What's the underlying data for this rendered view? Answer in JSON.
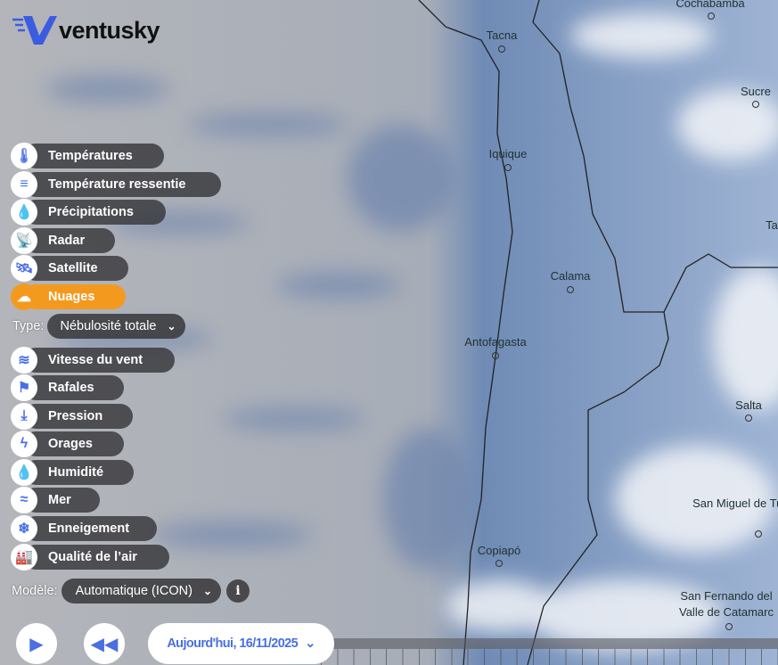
{
  "brand": {
    "name": "ventusky",
    "accent": "#4a6fe3",
    "active": "#f39a1e"
  },
  "layers": [
    {
      "label": "Températures",
      "icon": "thermometer-icon",
      "glyph": "🌡"
    },
    {
      "label": "Température ressentie",
      "icon": "feels-like-thermometer-icon",
      "glyph": "≡"
    },
    {
      "label": "Précipitations",
      "icon": "drop-icon",
      "glyph": "💧"
    },
    {
      "label": "Radar",
      "icon": "radar-dish-icon",
      "glyph": "📡"
    },
    {
      "label": "Satellite",
      "icon": "satellite-icon",
      "glyph": "🛰"
    },
    {
      "label": "Nuages",
      "icon": "cloud-icon",
      "glyph": "☁",
      "active": true
    },
    {
      "label": "Vitesse du vent",
      "icon": "wind-icon",
      "glyph": "≋"
    },
    {
      "label": "Rafales",
      "icon": "gust-flag-icon",
      "glyph": "⚑"
    },
    {
      "label": "Pression",
      "icon": "pressure-arrow-icon",
      "glyph": "⤓"
    },
    {
      "label": "Orages",
      "icon": "lightning-icon",
      "glyph": "ϟ"
    },
    {
      "label": "Humidité",
      "icon": "humidity-drop-icon",
      "glyph": "💧"
    },
    {
      "label": "Mer",
      "icon": "waves-icon",
      "glyph": "≈"
    },
    {
      "label": "Enneigement",
      "icon": "snowflake-icon",
      "glyph": "❄"
    },
    {
      "label": "Qualité de l’air",
      "icon": "factory-icon",
      "glyph": "🏭"
    }
  ],
  "type": {
    "label": "Type:",
    "value": "Nébulosité totale"
  },
  "model": {
    "label": "Modèle:",
    "value": "Automatique (ICON)",
    "info": "i"
  },
  "playback": {
    "date": "Aujourd'hui, 16/11/2025"
  },
  "cities": [
    {
      "name": "Cochabamba"
    },
    {
      "name": "Tacna"
    },
    {
      "name": "Sucre"
    },
    {
      "name": "Iquique"
    },
    {
      "name": "Ta"
    },
    {
      "name": "Calama"
    },
    {
      "name": "Antofagasta"
    },
    {
      "name": "Salta"
    },
    {
      "name": "San Miguel de Tucum"
    },
    {
      "name": "Copiapó"
    },
    {
      "name": "San Fernando del Valle de Catamarc"
    }
  ]
}
